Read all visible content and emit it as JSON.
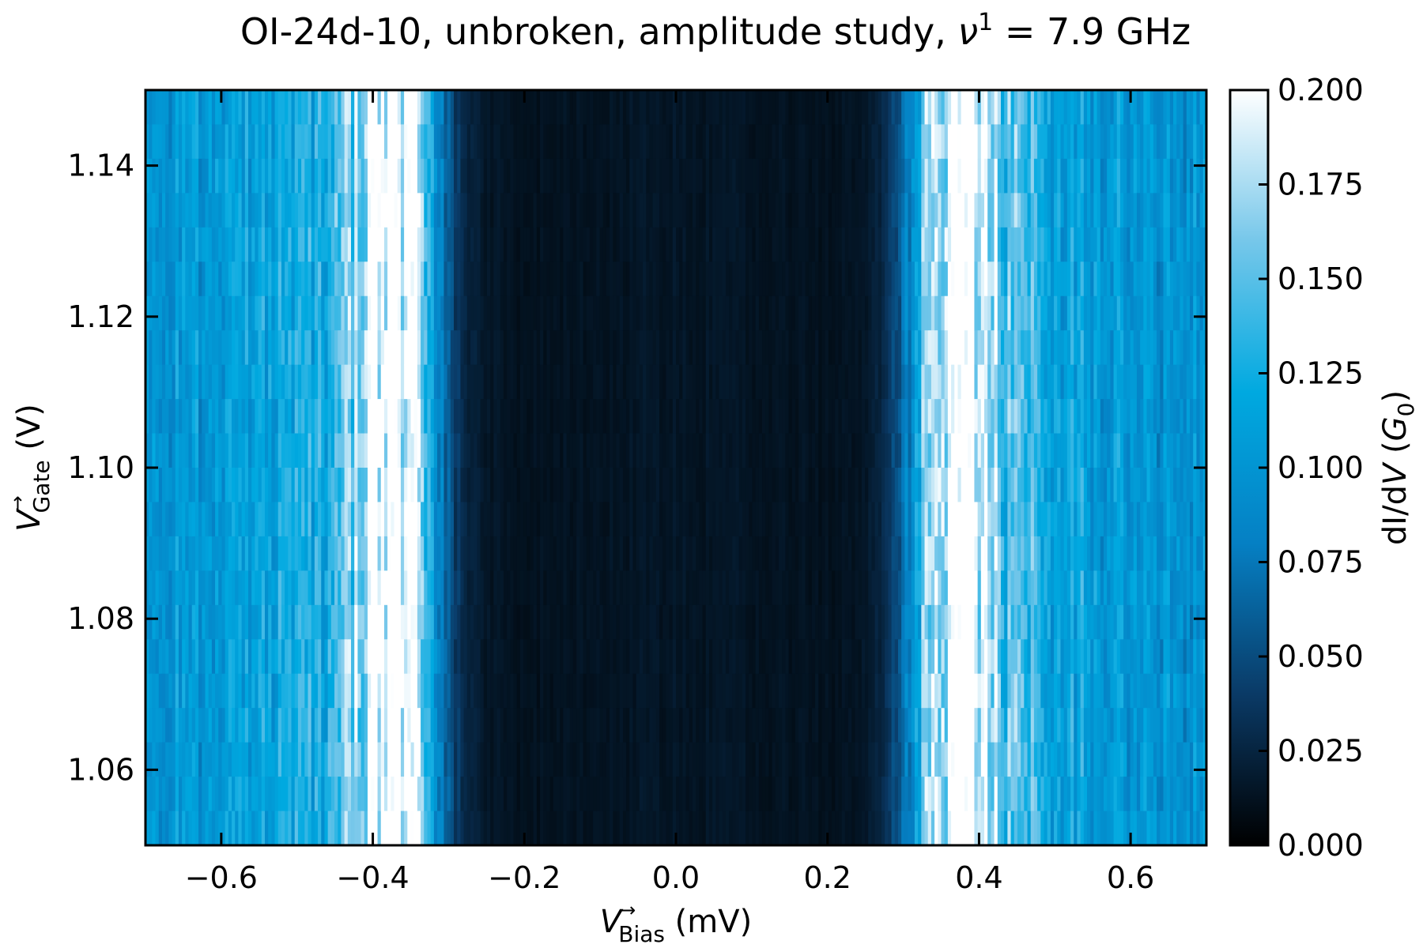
{
  "chart_data": {
    "type": "heatmap",
    "title": {
      "prefix": "OI-24d-10, unbroken, amplitude study, ",
      "nu": "ν",
      "nu_sup": "1",
      "suffix": " = 7.9 GHz"
    },
    "xlabel": {
      "var": "V",
      "arrow": "→",
      "sub": "Bias",
      "unit": " (mV)"
    },
    "ylabel": {
      "var": "V",
      "arrow": "→",
      "sub": "Gate",
      "unit": " (V)"
    },
    "colorbar_label": {
      "prefix": "dI/d",
      "var": "V",
      "open": " (",
      "g": "G",
      "g_sub": "0",
      "close": ")"
    },
    "xlim": [
      -0.7,
      0.7
    ],
    "ylim": [
      1.05,
      1.15
    ],
    "clim": [
      0.0,
      0.2
    ],
    "xticks": [
      {
        "v": -0.6,
        "label": "−0.6"
      },
      {
        "v": -0.4,
        "label": "−0.4"
      },
      {
        "v": -0.2,
        "label": "−0.2"
      },
      {
        "v": 0.0,
        "label": "0.0"
      },
      {
        "v": 0.2,
        "label": "0.2"
      },
      {
        "v": 0.4,
        "label": "0.4"
      },
      {
        "v": 0.6,
        "label": "0.6"
      }
    ],
    "yticks": [
      {
        "v": 1.06,
        "label": "1.06"
      },
      {
        "v": 1.08,
        "label": "1.08"
      },
      {
        "v": 1.1,
        "label": "1.10"
      },
      {
        "v": 1.12,
        "label": "1.12"
      },
      {
        "v": 1.14,
        "label": "1.14"
      }
    ],
    "cticks": [
      {
        "v": 0.0,
        "label": "0.000"
      },
      {
        "v": 0.025,
        "label": "0.025"
      },
      {
        "v": 0.05,
        "label": "0.050"
      },
      {
        "v": 0.075,
        "label": "0.075"
      },
      {
        "v": 0.1,
        "label": "0.100"
      },
      {
        "v": 0.125,
        "label": "0.125"
      },
      {
        "v": 0.15,
        "label": "0.150"
      },
      {
        "v": 0.175,
        "label": "0.175"
      },
      {
        "v": 0.2,
        "label": "0.200"
      }
    ],
    "colormap": [
      "#000000",
      "#0a3a66",
      "#0580c4",
      "#00a9e0",
      "#76c7ea",
      "#ffffff"
    ],
    "grid": false,
    "profile": {
      "bias_mV": [
        -0.7,
        -0.6,
        -0.5,
        -0.45,
        -0.42,
        -0.4,
        -0.37,
        -0.34,
        -0.32,
        -0.3,
        -0.28,
        -0.25,
        -0.2,
        -0.1,
        0.0,
        0.1,
        0.2,
        0.25,
        0.28,
        0.3,
        0.32,
        0.34,
        0.37,
        0.4,
        0.42,
        0.45,
        0.5,
        0.6,
        0.7
      ],
      "conductance_G0": [
        0.1,
        0.105,
        0.12,
        0.14,
        0.17,
        0.2,
        0.2,
        0.2,
        0.11,
        0.06,
        0.025,
        0.015,
        0.012,
        0.014,
        0.015,
        0.014,
        0.012,
        0.015,
        0.03,
        0.07,
        0.12,
        0.2,
        0.2,
        0.2,
        0.165,
        0.14,
        0.12,
        0.105,
        0.1
      ]
    }
  }
}
